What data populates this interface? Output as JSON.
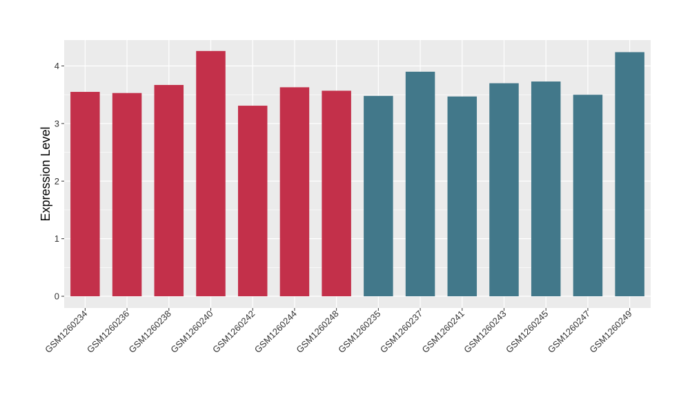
{
  "chart_data": {
    "type": "bar",
    "title": "",
    "xlabel": "",
    "ylabel": "Expression Level",
    "ylim": [
      0,
      4.45
    ],
    "yticks": [
      0,
      1,
      2,
      3,
      4
    ],
    "ytick_labels": [
      "0",
      "1",
      "2",
      "3",
      "4"
    ],
    "grid": true,
    "legend": "none",
    "categories": [
      "GSM1260234",
      "GSM1260236",
      "GSM1260238",
      "GSM1260240",
      "GSM1260242",
      "GSM1260244",
      "GSM1260248",
      "GSM1260235",
      "GSM1260237",
      "GSM1260241",
      "GSM1260243",
      "GSM1260245",
      "GSM1260247",
      "GSM1260249"
    ],
    "values": [
      3.55,
      3.53,
      3.67,
      4.26,
      3.31,
      3.63,
      3.57,
      3.48,
      3.9,
      3.47,
      3.7,
      3.73,
      3.5,
      4.24
    ],
    "groups": [
      0,
      0,
      0,
      0,
      0,
      0,
      0,
      1,
      1,
      1,
      1,
      1,
      1,
      1
    ],
    "colors": {
      "group_0": "#c3304a",
      "group_1": "#42788a",
      "panel_background": "#ebebeb",
      "grid": "#ffffff"
    }
  }
}
